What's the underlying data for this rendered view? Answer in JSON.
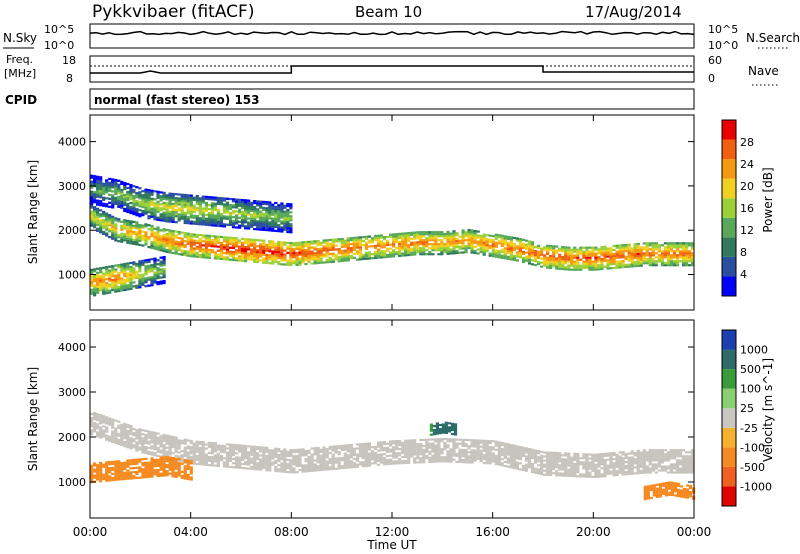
{
  "header": {
    "title": "Pykkvibaer (fitACF)",
    "beam": "Beam 10",
    "date": "17/Aug/2014"
  },
  "panels": {
    "nsky": {
      "label": "N.Sky",
      "right_label": "N.Search",
      "left_ticks": [
        "10^5",
        "10^0"
      ],
      "right_ticks": [
        "10^5",
        "10^0"
      ]
    },
    "freq": {
      "label_line1": "Freq.",
      "label_line2": "[MHz]",
      "right_label": "Nave",
      "left_ticks": [
        "18",
        "8"
      ],
      "right_ticks": [
        "60",
        "0"
      ]
    },
    "cpid": {
      "label": "CPID",
      "text": "normal (fast stereo) 153"
    }
  },
  "colors": {
    "power_scale": [
      "#0000ff",
      "#2b4fa0",
      "#2f7a5a",
      "#58a85a",
      "#9bd037",
      "#f0d020",
      "#f59a10",
      "#f06010",
      "#e80000"
    ],
    "velocity_scale": [
      "#1c3fb0",
      "#2f6b6b",
      "#3b9b3b",
      "#88d070",
      "#c8c8c0",
      "#f5b030",
      "#f58a20",
      "#f06020",
      "#e00000"
    ],
    "gray_band": "#c6c4bc"
  },
  "chart_data": [
    {
      "type": "heatmap",
      "name": "power",
      "ylabel": "Slant Range [km]",
      "yticks": [
        1000,
        2000,
        3000,
        4000
      ],
      "ylim": [
        200,
        4600
      ],
      "xlim": [
        0,
        24
      ],
      "colorbar": {
        "label": "Power [dB]",
        "ticks": [
          "28",
          "24",
          "20",
          "16",
          "12",
          "8",
          "4"
        ],
        "range": [
          0,
          30
        ]
      },
      "main_echo_band": {
        "x": [
          0,
          1,
          2,
          3,
          4,
          5,
          6,
          7,
          8,
          9,
          10,
          11,
          12,
          13,
          14,
          15,
          16,
          17,
          18,
          19,
          20,
          21,
          22,
          23,
          24
        ],
        "range_km": [
          2300,
          2000,
          1900,
          1750,
          1650,
          1600,
          1550,
          1500,
          1450,
          1500,
          1550,
          1600,
          1650,
          1700,
          1700,
          1750,
          1650,
          1550,
          1400,
          1350,
          1350,
          1400,
          1450,
          1450,
          1450
        ],
        "power_db": [
          18,
          20,
          22,
          24,
          26,
          27,
          28,
          28,
          27,
          26,
          25,
          24,
          24,
          24,
          23,
          23,
          24,
          24,
          25,
          25,
          26,
          26,
          25,
          24,
          24
        ]
      },
      "upper_echo_band": {
        "x": [
          0,
          1,
          2,
          3,
          4,
          5,
          6,
          7,
          8
        ],
        "range_km": [
          2900,
          2800,
          2600,
          2500,
          2450,
          2400,
          2350,
          2300,
          2250
        ],
        "power_db": [
          12,
          14,
          16,
          18,
          18,
          17,
          16,
          15,
          14
        ]
      },
      "near_range_echo": {
        "x": [
          0,
          1,
          2,
          3
        ],
        "range_km": [
          800,
          900,
          1000,
          1100
        ],
        "power_db": [
          22,
          24,
          18,
          14
        ]
      }
    },
    {
      "type": "heatmap",
      "name": "velocity",
      "ylabel": "Slant Range [km]",
      "xlabel": "Time UT",
      "xticks": [
        "00:00",
        "04:00",
        "08:00",
        "12:00",
        "16:00",
        "20:00",
        "00:00"
      ],
      "yticks": [
        1000,
        2000,
        3000,
        4000
      ],
      "ylim": [
        200,
        4600
      ],
      "xlim": [
        0,
        24
      ],
      "colorbar": {
        "label": "Velocity [m s^-1]",
        "ticks": [
          "1000",
          "500",
          "100",
          "25",
          "-25",
          "-100",
          "-500",
          "-1000"
        ]
      },
      "ground_scatter_band": {
        "x": [
          0,
          2,
          4,
          6,
          8,
          10,
          12,
          14,
          16,
          18,
          20,
          22,
          24
        ],
        "range_km": [
          2300,
          1900,
          1650,
          1550,
          1450,
          1550,
          1650,
          1700,
          1650,
          1400,
          1350,
          1450,
          1450
        ],
        "velocity": [
          0,
          0,
          0,
          0,
          0,
          0,
          0,
          0,
          0,
          0,
          0,
          0,
          0
        ]
      },
      "negative_echo_patch": {
        "x": [
          0,
          1,
          2,
          3,
          4
        ],
        "range_km": [
          1200,
          1250,
          1300,
          1350,
          1250
        ],
        "velocity": [
          -300,
          -200,
          -150,
          -400,
          -250
        ]
      },
      "positive_echo_patch": {
        "x": [
          13.5,
          14,
          14.5
        ],
        "range_km": [
          2150,
          2200,
          2150
        ],
        "velocity": [
          300,
          400,
          300
        ]
      },
      "late_negative_patch": {
        "x": [
          22,
          22.5,
          23,
          23.5,
          24
        ],
        "range_km": [
          750,
          800,
          850,
          800,
          750
        ],
        "velocity": [
          -150,
          -200,
          -250,
          -200,
          -150
        ]
      }
    }
  ]
}
